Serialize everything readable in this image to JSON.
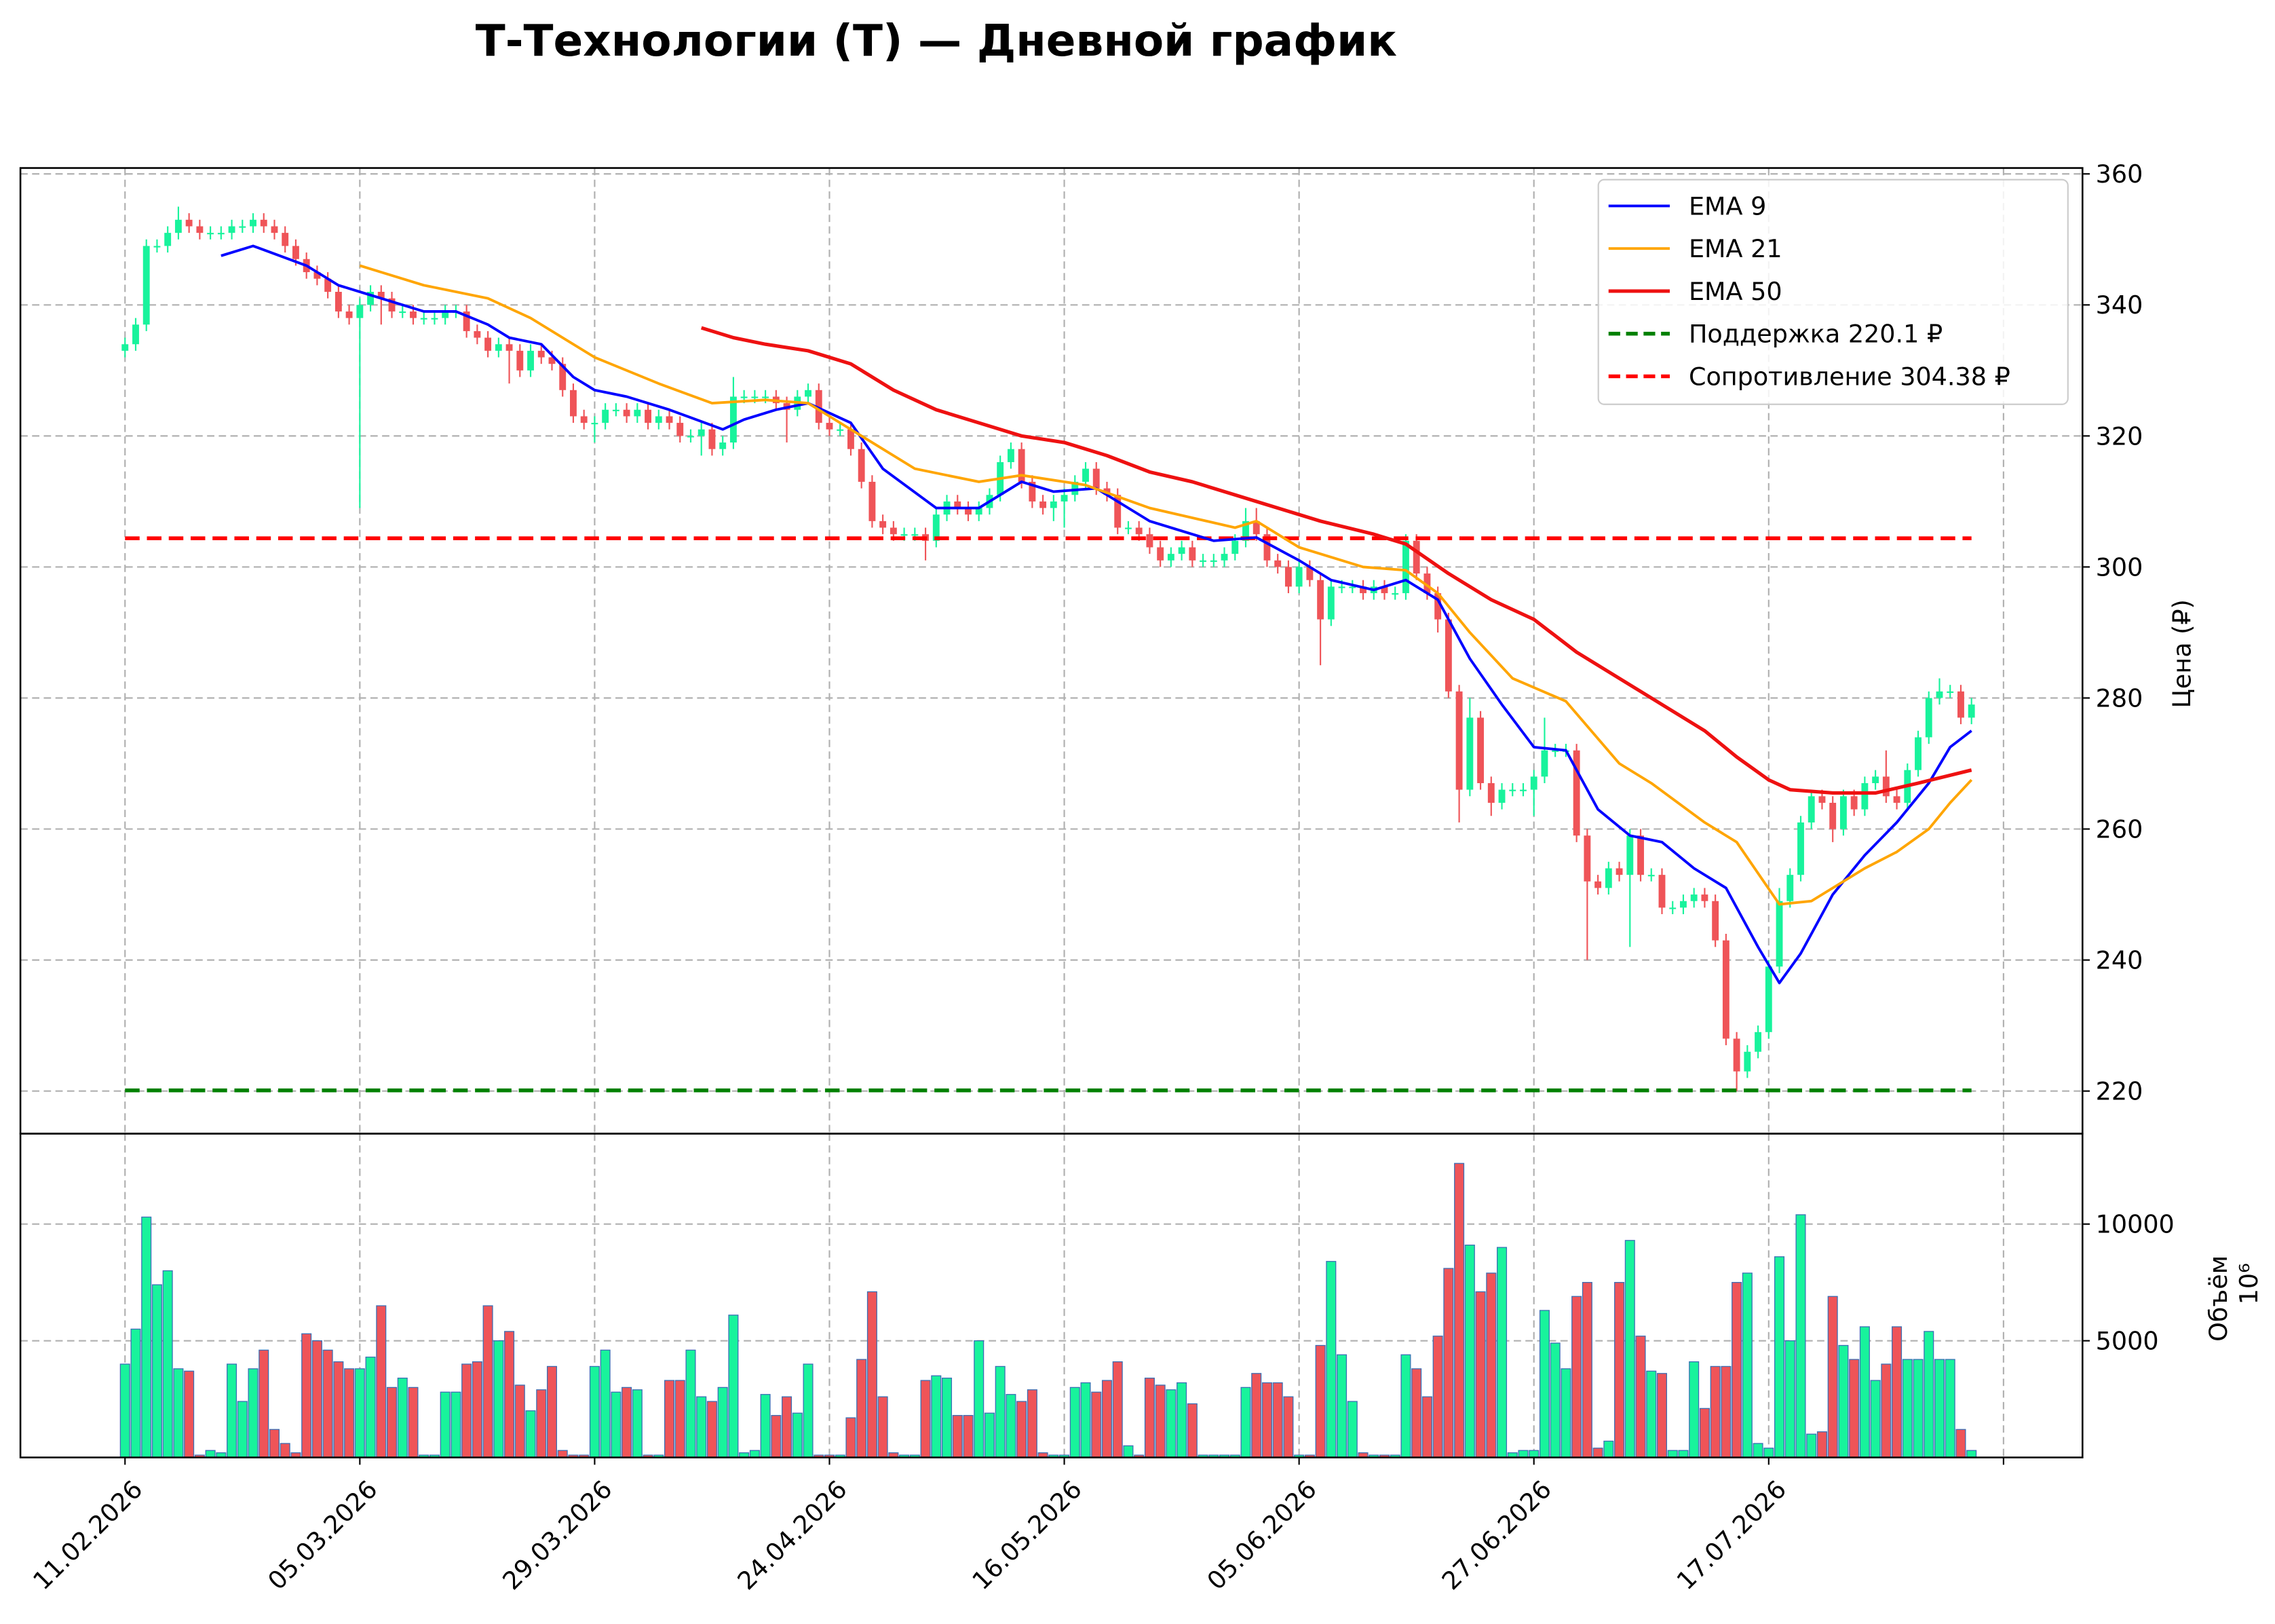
{
  "chart_data": {
    "type": "candlestick",
    "title": "Т-Технологии (T) — Дневной график",
    "ylabel": "Цена (₽)",
    "y2label": "Объём",
    "y2_scale_label": "10⁶",
    "up_color": "#18f39c",
    "down_color": "#ef5458",
    "volume_edge_color": "#3a6fb5",
    "grid": true,
    "legend": "upper right",
    "xlim": [
      -9.8,
      183.4
    ],
    "xticks": [
      {
        "value": 0,
        "label": "11.02.2026"
      },
      {
        "value": 22,
        "label": "05.03.2026"
      },
      {
        "value": 44,
        "label": "29.03.2026"
      },
      {
        "value": 66,
        "label": "24.04.2026"
      },
      {
        "value": 88,
        "label": "16.05.2026"
      },
      {
        "value": 110,
        "label": "05.06.2026"
      },
      {
        "value": 132,
        "label": "27.06.2026"
      },
      {
        "value": 154,
        "label": "17.07.2026"
      },
      {
        "value": 176,
        "label": null
      }
    ],
    "ylim": [
      213.5,
      360.9
    ],
    "yticks": [
      220,
      240,
      260,
      280,
      300,
      320,
      340,
      360
    ],
    "y2lim": [
      0,
      13875
    ],
    "y2ticks": [
      5000,
      10000
    ],
    "open": [
      333,
      334,
      337,
      349,
      349,
      351,
      353,
      352,
      351,
      351,
      351,
      352,
      352,
      353,
      352,
      351,
      349,
      347,
      345,
      344,
      342,
      339,
      338,
      340,
      342,
      341,
      339,
      339,
      338,
      338,
      338,
      339,
      339,
      336,
      335,
      333,
      334,
      333,
      330,
      333,
      332,
      331,
      327,
      323,
      322,
      322,
      324,
      324,
      323,
      324,
      322,
      323,
      322,
      320,
      320,
      321,
      318,
      319,
      326,
      326,
      326,
      326,
      325,
      324,
      326,
      327,
      322,
      321,
      321,
      318,
      313,
      307,
      306,
      305,
      305,
      305,
      304,
      308,
      310,
      309,
      308,
      309,
      311,
      316,
      318,
      313,
      310,
      309,
      310,
      311,
      313,
      315,
      312,
      311,
      306,
      306,
      305,
      303,
      301,
      302,
      303,
      301,
      301,
      301,
      302,
      304,
      307,
      305,
      301,
      300,
      297,
      300,
      298,
      292,
      297,
      297,
      297,
      296,
      297,
      296,
      296,
      304,
      299,
      296,
      292,
      281,
      266,
      277,
      267,
      264,
      266,
      266,
      266,
      268,
      272,
      272,
      272,
      259,
      252,
      251,
      254,
      253,
      259,
      253,
      253,
      248,
      248,
      249,
      250,
      249,
      243,
      228,
      223,
      226,
      229,
      239,
      249,
      253,
      261,
      265,
      264,
      260,
      265,
      263,
      267,
      268,
      265,
      264,
      269,
      274,
      280,
      281,
      281,
      277
    ],
    "high": [
      335,
      338,
      350,
      350,
      352,
      355,
      354,
      353,
      352,
      352,
      353,
      353,
      354,
      354,
      353,
      352,
      350,
      348,
      346,
      345,
      343,
      340,
      341,
      343,
      343,
      342,
      340,
      340,
      339,
      339,
      340,
      340,
      340,
      337,
      336,
      335,
      335,
      334,
      334,
      334,
      333,
      332,
      328,
      324,
      323,
      325,
      325,
      325,
      325,
      325,
      324,
      324,
      323,
      321,
      322,
      322,
      320,
      329,
      327,
      327,
      327,
      327,
      326,
      327,
      328,
      328,
      323,
      322,
      322,
      319,
      314,
      308,
      307,
      306,
      306,
      306,
      309,
      311,
      311,
      310,
      310,
      312,
      317,
      319,
      319,
      314,
      311,
      311,
      312,
      314,
      316,
      316,
      313,
      312,
      307,
      307,
      306,
      304,
      303,
      304,
      304,
      302,
      302,
      303,
      305,
      309,
      309,
      306,
      302,
      301,
      301,
      301,
      299,
      298,
      298,
      298,
      298,
      298,
      298,
      297,
      305,
      305,
      300,
      297,
      293,
      282,
      280,
      278,
      268,
      267,
      267,
      267,
      269,
      277,
      273,
      273,
      273,
      260,
      253,
      255,
      255,
      260,
      260,
      254,
      254,
      249,
      250,
      251,
      251,
      250,
      244,
      229,
      227,
      230,
      240,
      251,
      254,
      262,
      266,
      266,
      265,
      266,
      266,
      268,
      269,
      272,
      266,
      270,
      275,
      281,
      283,
      282,
      282,
      280
    ],
    "low": [
      332,
      333,
      336,
      348,
      348,
      350,
      351,
      350,
      350,
      350,
      350,
      351,
      351,
      351,
      350,
      348,
      346,
      344,
      343,
      341,
      338,
      337,
      309,
      339,
      337,
      338,
      338,
      337,
      337,
      337,
      337,
      338,
      335,
      334,
      332,
      332,
      328,
      329,
      329,
      331,
      330,
      326,
      322,
      321,
      319,
      321,
      323,
      322,
      322,
      321,
      321,
      321,
      319,
      319,
      317,
      317,
      317,
      318,
      325,
      325,
      325,
      324,
      319,
      323,
      325,
      321,
      320,
      320,
      317,
      312,
      306,
      305,
      304,
      304,
      304,
      301,
      303,
      307,
      308,
      307,
      307,
      308,
      310,
      315,
      312,
      309,
      308,
      307,
      306,
      310,
      312,
      311,
      310,
      305,
      305,
      304,
      302,
      300,
      300,
      301,
      300,
      300,
      300,
      300,
      301,
      303,
      304,
      300,
      299,
      296,
      296,
      297,
      285,
      291,
      296,
      296,
      295,
      295,
      295,
      295,
      295,
      298,
      295,
      290,
      280,
      261,
      265,
      266,
      262,
      263,
      265,
      265,
      262,
      267,
      271,
      271,
      258,
      240,
      250,
      250,
      252,
      242,
      252,
      252,
      247,
      247,
      247,
      248,
      248,
      242,
      227,
      220,
      222,
      225,
      228,
      238,
      248,
      252,
      260,
      263,
      258,
      259,
      262,
      262,
      266,
      264,
      263,
      263,
      268,
      273,
      279,
      280,
      276,
      276
    ],
    "close": [
      334,
      337,
      349,
      349,
      351,
      353,
      352,
      351,
      351,
      351,
      352,
      352,
      353,
      352,
      351,
      349,
      347,
      345,
      344,
      342,
      339,
      338,
      340,
      342,
      341,
      339,
      339,
      338,
      338,
      338,
      339,
      339,
      336,
      335,
      333,
      334,
      333,
      330,
      333,
      332,
      331,
      327,
      323,
      322,
      322,
      324,
      324,
      323,
      324,
      322,
      323,
      322,
      320,
      320,
      321,
      318,
      319,
      326,
      326,
      326,
      326,
      325,
      324,
      326,
      327,
      322,
      321,
      321,
      318,
      313,
      307,
      306,
      305,
      305,
      305,
      304,
      308,
      310,
      309,
      308,
      309,
      311,
      316,
      318,
      313,
      310,
      309,
      310,
      311,
      313,
      315,
      312,
      311,
      306,
      306,
      305,
      303,
      301,
      302,
      303,
      301,
      301,
      301,
      302,
      304,
      307,
      305,
      301,
      300,
      297,
      300,
      298,
      292,
      297,
      297,
      297,
      296,
      297,
      296,
      296,
      304,
      299,
      296,
      292,
      281,
      266,
      277,
      267,
      264,
      266,
      266,
      266,
      268,
      272,
      272,
      272,
      259,
      252,
      251,
      254,
      253,
      259,
      253,
      253,
      248,
      248,
      249,
      250,
      249,
      243,
      228,
      223,
      226,
      229,
      239,
      249,
      253,
      261,
      265,
      264,
      260,
      265,
      263,
      267,
      268,
      265,
      264,
      269,
      274,
      280,
      281,
      281,
      277,
      279
    ],
    "volume": [
      4000,
      5500,
      10300,
      7400,
      8000,
      3800,
      3700,
      100,
      300,
      200,
      4000,
      2400,
      3800,
      4600,
      1200,
      600,
      200,
      5300,
      5000,
      4600,
      4100,
      3800,
      3800,
      4300,
      6500,
      3000,
      3400,
      3000,
      100,
      100,
      2800,
      2800,
      4000,
      4100,
      6500,
      5000,
      5400,
      3100,
      2000,
      2900,
      3900,
      300,
      100,
      100,
      3900,
      4600,
      2800,
      3000,
      2900,
      100,
      100,
      3300,
      3300,
      4600,
      2600,
      2400,
      3000,
      6100,
      200,
      300,
      2700,
      1800,
      2600,
      1900,
      4000,
      100,
      100,
      100,
      1700,
      4200,
      7100,
      2600,
      200,
      100,
      100,
      3300,
      3500,
      3400,
      1800,
      1800,
      5000,
      1900,
      3900,
      2700,
      2400,
      2900,
      200,
      100,
      100,
      3000,
      3200,
      2800,
      3300,
      4100,
      500,
      100,
      3400,
      3100,
      2900,
      3200,
      2300,
      100,
      100,
      100,
      100,
      3000,
      3600,
      3200,
      3200,
      2600,
      100,
      100,
      4800,
      8400,
      4400,
      2400,
      200,
      100,
      100,
      100,
      4400,
      3800,
      2600,
      5200,
      8100,
      12600,
      9100,
      7100,
      7900,
      9000,
      200,
      300,
      300,
      6300,
      4900,
      3800,
      6900,
      7500,
      400,
      700,
      7500,
      9300,
      5200,
      3700,
      3600,
      300,
      300,
      4100,
      2100,
      3900,
      3900,
      7500,
      7900,
      600,
      400,
      8600,
      5000,
      10400,
      1000,
      1100,
      6900,
      4800,
      4200,
      5600,
      3300,
      4000,
      5600,
      4200,
      4200,
      5400,
      4200,
      4200,
      1200,
      300
    ],
    "lines": [
      {
        "name": "EMA 9",
        "color": "#0000ff",
        "width": 1.8,
        "x": [
          9,
          12,
          17,
          20,
          22,
          24,
          28,
          31,
          34,
          36,
          39,
          42,
          44,
          47,
          51,
          56,
          58,
          61,
          64,
          68,
          71,
          76,
          80,
          84,
          87,
          91,
          96,
          102,
          106,
          110,
          113,
          117,
          120,
          123,
          126,
          129,
          132,
          135,
          138,
          141,
          144,
          147,
          150,
          153,
          155,
          157,
          160,
          163,
          166,
          169,
          171,
          173
        ],
        "values": [
          347.5,
          349,
          346,
          343,
          342,
          341,
          339,
          339,
          337,
          335,
          334,
          329,
          327,
          326,
          324,
          321,
          322.5,
          324,
          325,
          322,
          315,
          309,
          309,
          313,
          311.5,
          312,
          307,
          304,
          304.5,
          301,
          298,
          296.5,
          298,
          295,
          286,
          279,
          272.5,
          272,
          263,
          259,
          258,
          254,
          251,
          242,
          236.5,
          241,
          250,
          256,
          261,
          267,
          272.5,
          275
        ]
      },
      {
        "name": "EMA 21",
        "color": "#ffa500",
        "width": 1.8,
        "x": [
          22,
          24,
          28,
          34,
          38,
          44,
          50,
          55,
          60,
          64,
          68,
          74,
          80,
          84,
          90,
          96,
          104,
          106,
          110,
          116,
          120,
          123,
          126,
          130,
          135,
          140,
          143,
          148,
          151,
          155,
          158,
          163,
          166,
          169,
          171,
          173
        ],
        "values": [
          346,
          345,
          343,
          341,
          338,
          332,
          328,
          325,
          325.5,
          325,
          321,
          315,
          313,
          314,
          312.5,
          309,
          306,
          307,
          303,
          300,
          299.5,
          296,
          290,
          283,
          279.5,
          270,
          267,
          261,
          258,
          248.5,
          249,
          254,
          256.5,
          260,
          264,
          267.5
        ]
      },
      {
        "name": "EMA 50",
        "color": "#ee1111",
        "width": 2.4,
        "x": [
          54,
          57,
          60,
          64,
          68,
          72,
          76,
          80,
          84,
          88,
          92,
          96,
          100,
          104,
          107,
          112,
          117,
          120,
          124,
          128,
          132,
          136,
          140,
          144,
          148,
          151,
          154,
          156,
          160,
          164,
          168,
          173
        ],
        "values": [
          336.5,
          335,
          334,
          333,
          331,
          327,
          324,
          322,
          320,
          319,
          317,
          314.5,
          313,
          311,
          309.5,
          307,
          305,
          303.5,
          299,
          295,
          292,
          287,
          283,
          279,
          275,
          271,
          267.5,
          266,
          265.5,
          265.5,
          267,
          269
        ]
      }
    ],
    "levels": [
      {
        "name": "Поддержка 220.1 ₽",
        "value": 220.1,
        "color": "#008000"
      },
      {
        "name": "Сопротивление 304.38 ₽",
        "value": 304.38,
        "color": "#ff0000"
      }
    ]
  }
}
